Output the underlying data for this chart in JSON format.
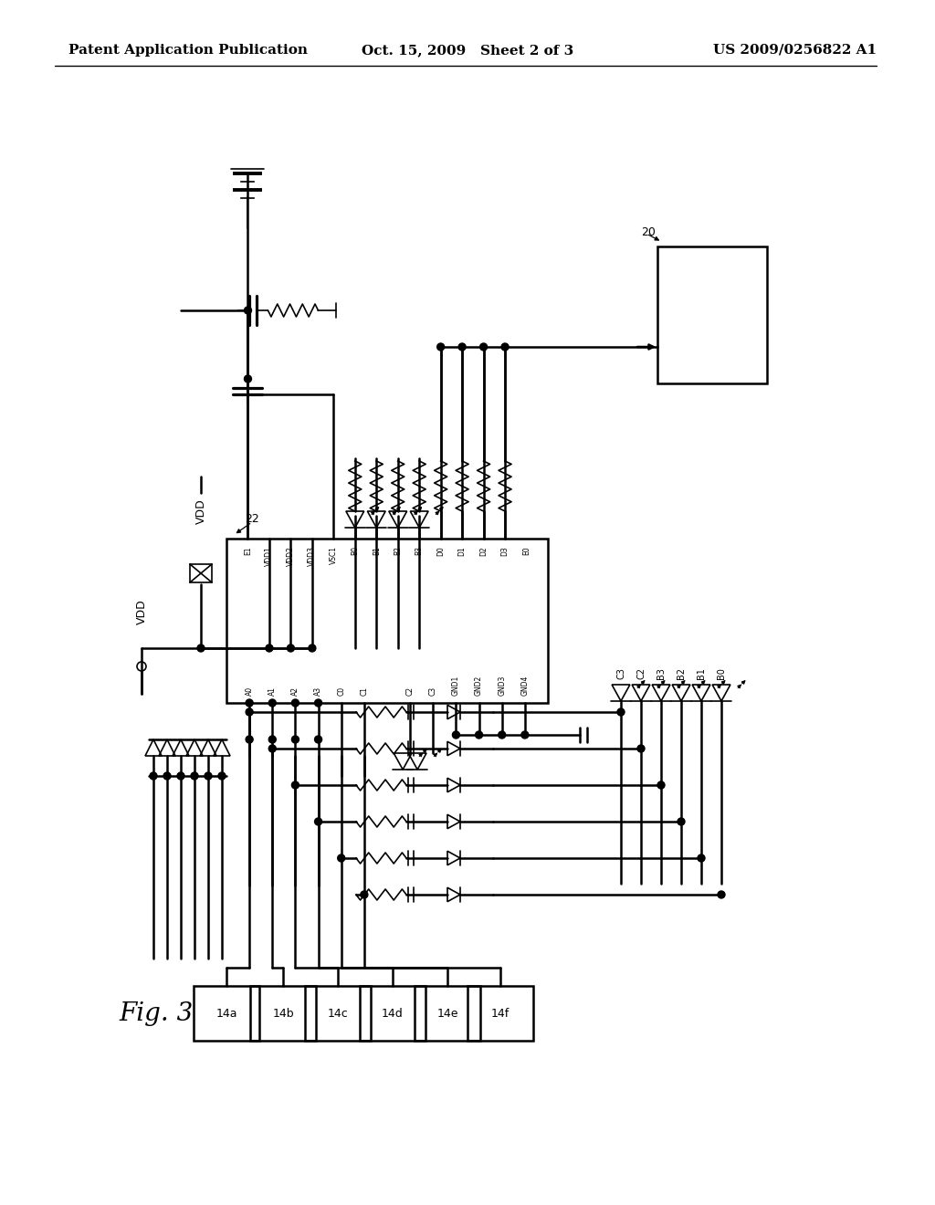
{
  "title_left": "Patent Application Publication",
  "title_center": "Oct. 15, 2009   Sheet 2 of 3",
  "title_right": "US 2009/0256822 A1",
  "fig_label": "Fig. 3",
  "background_color": "#ffffff",
  "line_color": "#000000",
  "ic_pins_top": [
    "E1",
    "VDD1",
    "VDD2",
    "VDD3",
    "VSC1",
    "B0",
    "B1",
    "B2",
    "B3",
    "D0",
    "D1",
    "D2",
    "D3",
    "E0"
  ],
  "ic_pins_bot": [
    "A0",
    "A1",
    "A2",
    "A3",
    "C0",
    "C1",
    "",
    "C2",
    "C3",
    "GND1",
    "GND2",
    "GND3",
    "GND4"
  ],
  "terminals": [
    "14a",
    "14b",
    "14c",
    "14d",
    "14e",
    "14f"
  ],
  "right_labels": [
    "C3",
    "C2",
    "B3",
    "B2",
    "B1",
    "B0"
  ]
}
